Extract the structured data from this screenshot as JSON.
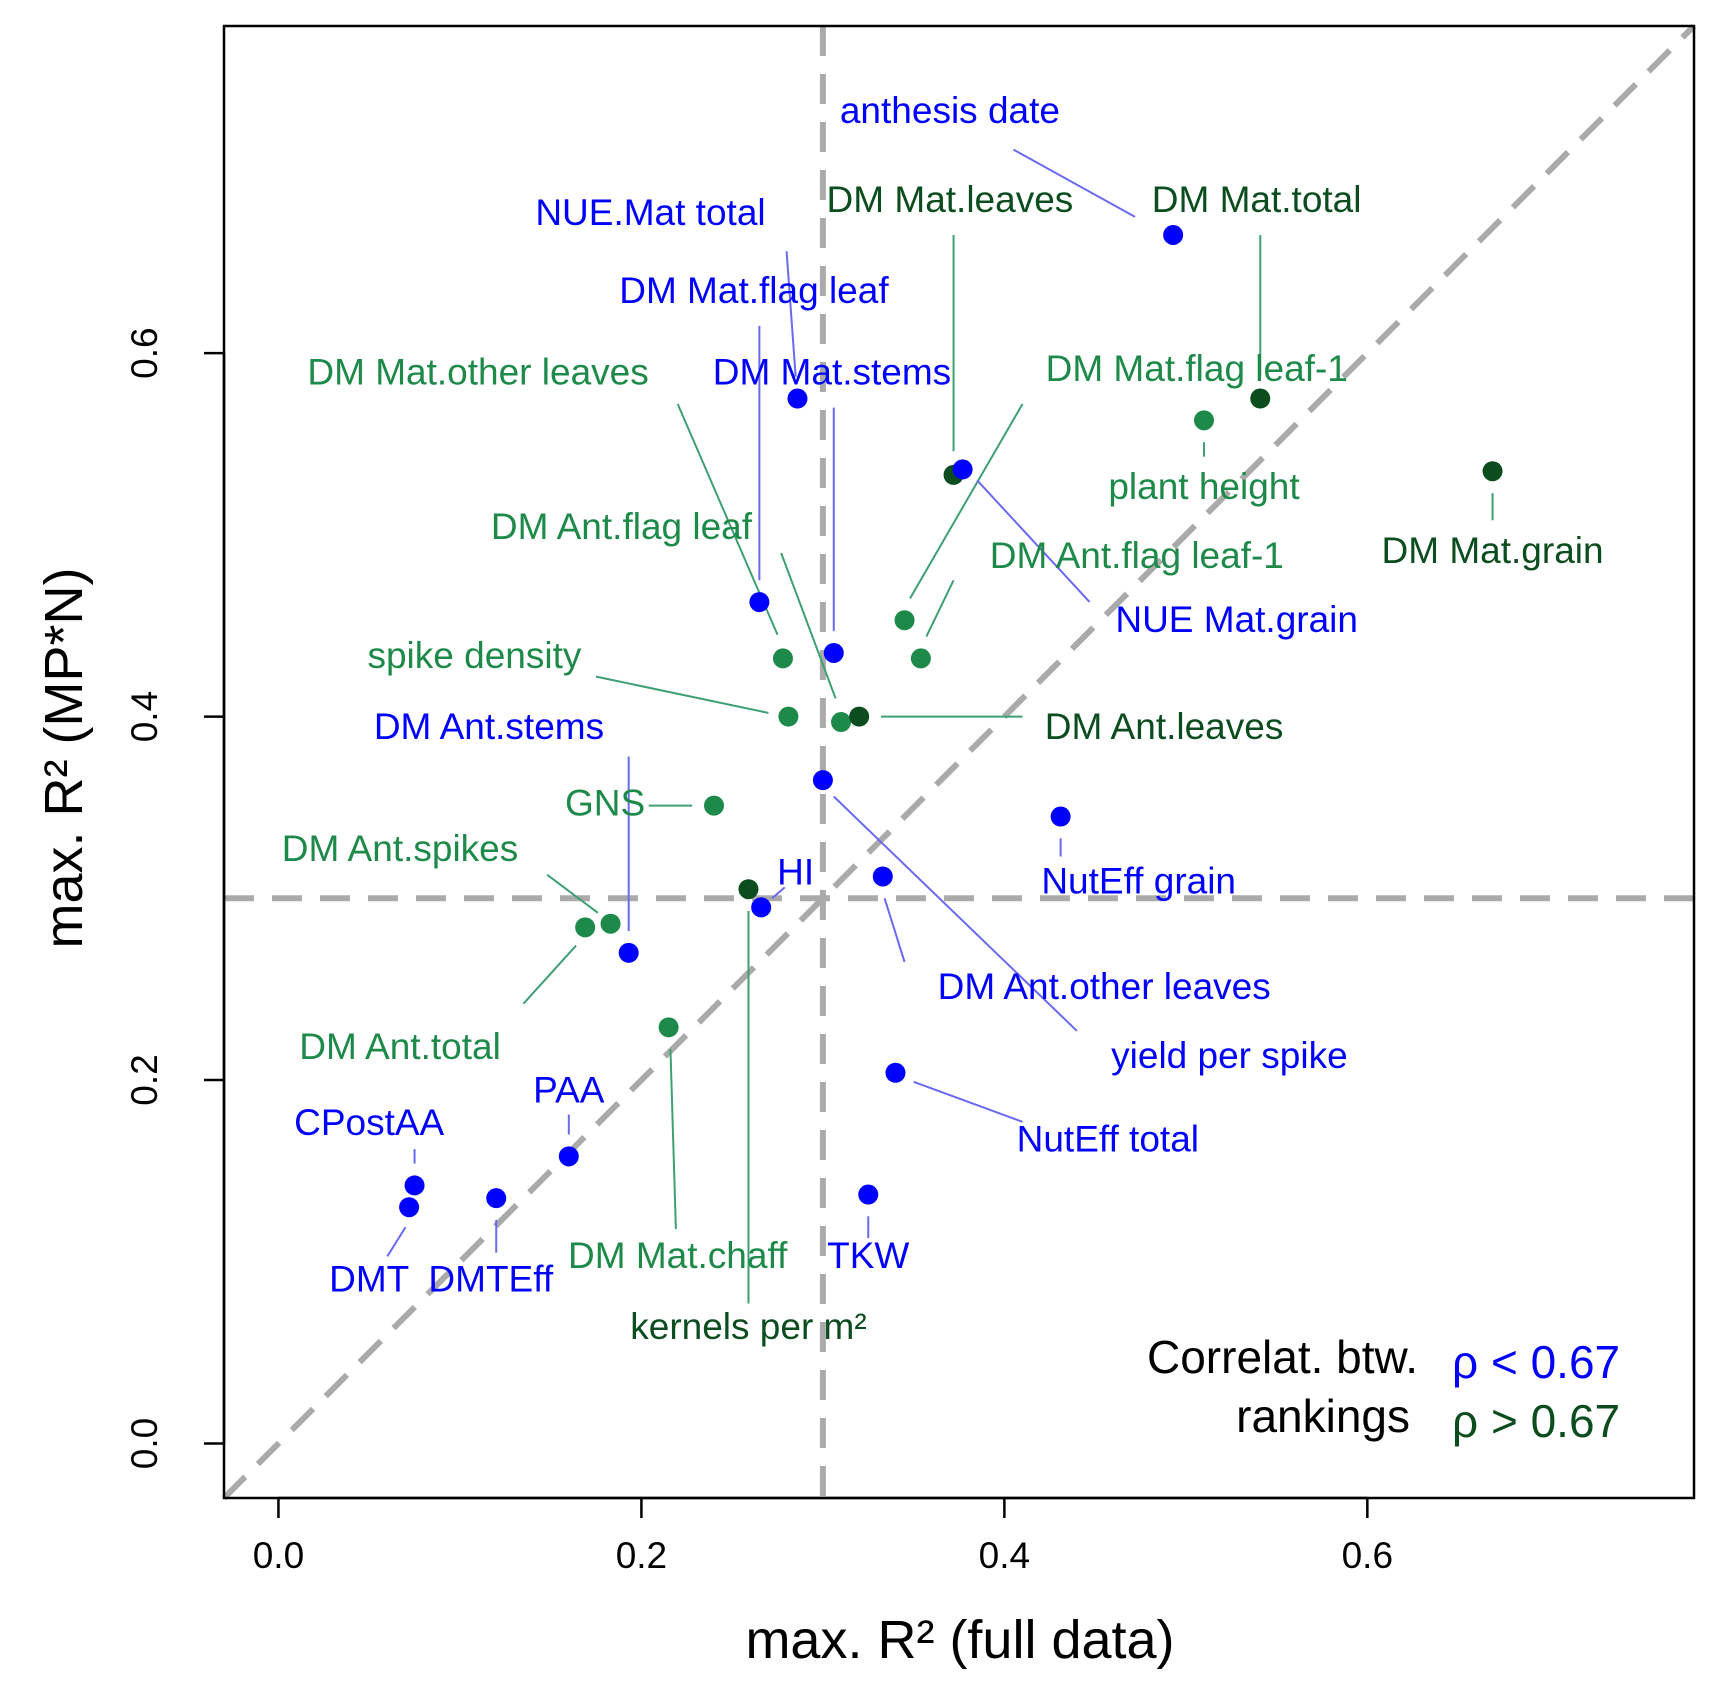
{
  "chart_data": {
    "type": "scatter",
    "xlabel": "max. R² (full data)",
    "ylabel": "max. R² (MP*N)",
    "xlim": [
      -0.03,
      0.78
    ],
    "ylim": [
      -0.03,
      0.78
    ],
    "xticks": [
      "0.0",
      "0.2",
      "0.4",
      "0.6"
    ],
    "yticks": [
      "0.0",
      "0.2",
      "0.4",
      "0.6"
    ],
    "tick_values": [
      0,
      0.2,
      0.4,
      0.6
    ],
    "reference_lines": {
      "vertical_x": 0.3,
      "horizontal_y": 0.3,
      "diagonal": "y = x"
    },
    "colors": {
      "low": "#0000ff",
      "high_light": "#1e8a4a",
      "high_dark": "#0b4d1e",
      "leader_low": "#6a6af0",
      "leader_high": "#3f9f74",
      "reference": "#aaaaaa"
    },
    "points": [
      {
        "label": "anthesis date",
        "x": 0.493,
        "y": 0.665,
        "group": "low",
        "lx": 0.37,
        "ly": 0.732,
        "ax": 0.472,
        "ay": 0.675,
        "bx": 0.405,
        "by": 0.712
      },
      {
        "label": "DM Mat.total",
        "x": 0.541,
        "y": 0.575,
        "group": "high_dark",
        "lx": 0.539,
        "ly": 0.683,
        "ax": 0.541,
        "ay": 0.587,
        "bx": 0.541,
        "by": 0.665
      },
      {
        "label": "DM Mat.leaves",
        "x": 0.372,
        "y": 0.533,
        "group": "high_dark",
        "lx": 0.37,
        "ly": 0.683,
        "ax": 0.372,
        "ay": 0.546,
        "bx": 0.372,
        "by": 0.665
      },
      {
        "label": "NUE.Mat total",
        "x": 0.286,
        "y": 0.575,
        "group": "low",
        "lx": 0.205,
        "ly": 0.676,
        "ax": 0.285,
        "ay": 0.587,
        "bx": 0.28,
        "by": 0.656
      },
      {
        "label": "DM Mat.flag leaf",
        "x": 0.265,
        "y": 0.463,
        "group": "low",
        "lx": 0.262,
        "ly": 0.633,
        "ax": 0.265,
        "ay": 0.475,
        "bx": 0.265,
        "by": 0.615
      },
      {
        "label": "DM Mat.stems",
        "x": 0.306,
        "y": 0.435,
        "group": "low",
        "lx": 0.305,
        "ly": 0.588,
        "ax": 0.306,
        "ay": 0.447,
        "bx": 0.306,
        "by": 0.57
      },
      {
        "label": "DM Mat.other leaves",
        "x": 0.278,
        "y": 0.432,
        "group": "high_light",
        "lx": 0.11,
        "ly": 0.588,
        "ax": 0.275,
        "ay": 0.445,
        "bx": 0.22,
        "by": 0.572
      },
      {
        "label": "DM Mat.flag leaf-1",
        "x": 0.345,
        "y": 0.453,
        "group": "high_light",
        "lx": 0.506,
        "ly": 0.59,
        "ax": 0.348,
        "ay": 0.465,
        "bx": 0.41,
        "by": 0.572
      },
      {
        "label": "plant height",
        "x": 0.51,
        "y": 0.563,
        "group": "high_light",
        "lx": 0.51,
        "ly": 0.525,
        "ax": 0.51,
        "ay": 0.551,
        "bx": 0.51,
        "by": 0.543
      },
      {
        "label": "DM Mat.grain",
        "x": 0.669,
        "y": 0.535,
        "group": "high_dark",
        "lx": 0.669,
        "ly": 0.49,
        "ax": 0.669,
        "ay": 0.523,
        "bx": 0.669,
        "by": 0.508
      },
      {
        "label": "DM Ant.flag leaf-1",
        "x": 0.354,
        "y": 0.432,
        "group": "high_light",
        "lx": 0.473,
        "ly": 0.487,
        "ax": 0.357,
        "ay": 0.444,
        "bx": 0.372,
        "by": 0.475
      },
      {
        "label": "NUE Mat.grain",
        "x": 0.377,
        "y": 0.536,
        "group": "low",
        "lx": 0.528,
        "ly": 0.452,
        "ax": 0.385,
        "ay": 0.53,
        "bx": 0.447,
        "by": 0.463
      },
      {
        "label": "DM Ant.flag leaf",
        "x": 0.31,
        "y": 0.397,
        "group": "high_light",
        "lx": 0.189,
        "ly": 0.503,
        "ax": 0.307,
        "ay": 0.41,
        "bx": 0.277,
        "by": 0.49
      },
      {
        "label": "spike density",
        "x": 0.281,
        "y": 0.4,
        "group": "high_light",
        "lx": 0.108,
        "ly": 0.432,
        "ax": 0.27,
        "ay": 0.402,
        "bx": 0.175,
        "by": 0.422
      },
      {
        "label": "DM Ant.leaves",
        "x": 0.32,
        "y": 0.4,
        "group": "high_dark",
        "lx": 0.488,
        "ly": 0.393,
        "ax": 0.332,
        "ay": 0.4,
        "bx": 0.41,
        "by": 0.4
      },
      {
        "label": "DM Ant.stems",
        "x": 0.193,
        "y": 0.27,
        "group": "low",
        "lx": 0.116,
        "ly": 0.393,
        "ax": 0.193,
        "ay": 0.282,
        "bx": 0.193,
        "by": 0.378
      },
      {
        "label": "GNS",
        "x": 0.24,
        "y": 0.351,
        "group": "high_light",
        "lx": 0.18,
        "ly": 0.351,
        "ax": 0.228,
        "ay": 0.351,
        "bx": 0.204,
        "by": 0.351
      },
      {
        "label": "DM Ant.spikes",
        "x": 0.183,
        "y": 0.286,
        "group": "high_light",
        "lx": 0.067,
        "ly": 0.326,
        "ax": 0.176,
        "ay": 0.292,
        "bx": 0.148,
        "by": 0.313
      },
      {
        "label": "DM Ant.total",
        "x": 0.169,
        "y": 0.284,
        "group": "high_light",
        "lx": 0.067,
        "ly": 0.217,
        "ax": 0.164,
        "ay": 0.274,
        "bx": 0.135,
        "by": 0.242
      },
      {
        "label": "HI",
        "x": 0.266,
        "y": 0.295,
        "group": "low",
        "lx": 0.285,
        "ly": 0.313,
        "ax": 0.272,
        "ay": 0.3,
        "bx": 0.279,
        "by": 0.306
      },
      {
        "label": "NutEff grain",
        "x": 0.431,
        "y": 0.345,
        "group": "low",
        "lx": 0.474,
        "ly": 0.308,
        "ax": 0.431,
        "ay": 0.333,
        "bx": 0.431,
        "by": 0.323
      },
      {
        "label": "DM Ant.other leaves",
        "x": 0.333,
        "y": 0.312,
        "group": "low",
        "lx": 0.455,
        "ly": 0.25,
        "ax": 0.334,
        "ay": 0.3,
        "bx": 0.345,
        "by": 0.265
      },
      {
        "label": "yield per spike",
        "x": 0.3,
        "y": 0.365,
        "group": "low",
        "lx": 0.524,
        "ly": 0.212,
        "ax": 0.306,
        "ay": 0.356,
        "bx": 0.44,
        "by": 0.227
      },
      {
        "label": "DM Mat.chaff",
        "x": 0.215,
        "y": 0.229,
        "group": "high_light",
        "lx": 0.22,
        "ly": 0.102,
        "ax": 0.216,
        "ay": 0.217,
        "bx": 0.219,
        "by": 0.118
      },
      {
        "label": "kernels per m²",
        "x": 0.259,
        "y": 0.305,
        "group": "high_dark",
        "lx": 0.259,
        "ly": 0.063,
        "ax": 0.259,
        "ay": 0.293,
        "bx": 0.259,
        "by": 0.077
      },
      {
        "label": "NutEff total",
        "x": 0.34,
        "y": 0.204,
        "group": "low",
        "lx": 0.457,
        "ly": 0.166,
        "ax": 0.35,
        "ay": 0.199,
        "bx": 0.41,
        "by": 0.177
      },
      {
        "label": "TKW",
        "x": 0.325,
        "y": 0.137,
        "group": "low",
        "lx": 0.325,
        "ly": 0.102,
        "ax": 0.325,
        "ay": 0.125,
        "bx": 0.325,
        "by": 0.113
      },
      {
        "label": "PAA",
        "x": 0.16,
        "y": 0.158,
        "group": "low",
        "lx": 0.16,
        "ly": 0.193,
        "ax": 0.16,
        "ay": 0.17,
        "bx": 0.16,
        "by": 0.181
      },
      {
        "label": "CPostAA",
        "x": 0.075,
        "y": 0.142,
        "group": "low",
        "lx": 0.05,
        "ly": 0.175,
        "ax": 0.075,
        "ay": 0.154,
        "bx": 0.075,
        "by": 0.162
      },
      {
        "label": "DMT",
        "x": 0.072,
        "y": 0.13,
        "group": "low",
        "lx": 0.05,
        "ly": 0.089,
        "ax": 0.07,
        "ay": 0.119,
        "bx": 0.06,
        "by": 0.103
      },
      {
        "label": "DMTEff",
        "x": 0.12,
        "y": 0.135,
        "group": "low",
        "lx": 0.117,
        "ly": 0.089,
        "ax": 0.12,
        "ay": 0.123,
        "bx": 0.12,
        "by": 0.105
      }
    ],
    "legend": {
      "title_line1": "Correlat. btw.",
      "title_line2": "rankings",
      "low_label": "ρ < 0.67",
      "high_label": "ρ > 0.67",
      "position": "bottom-right"
    }
  }
}
